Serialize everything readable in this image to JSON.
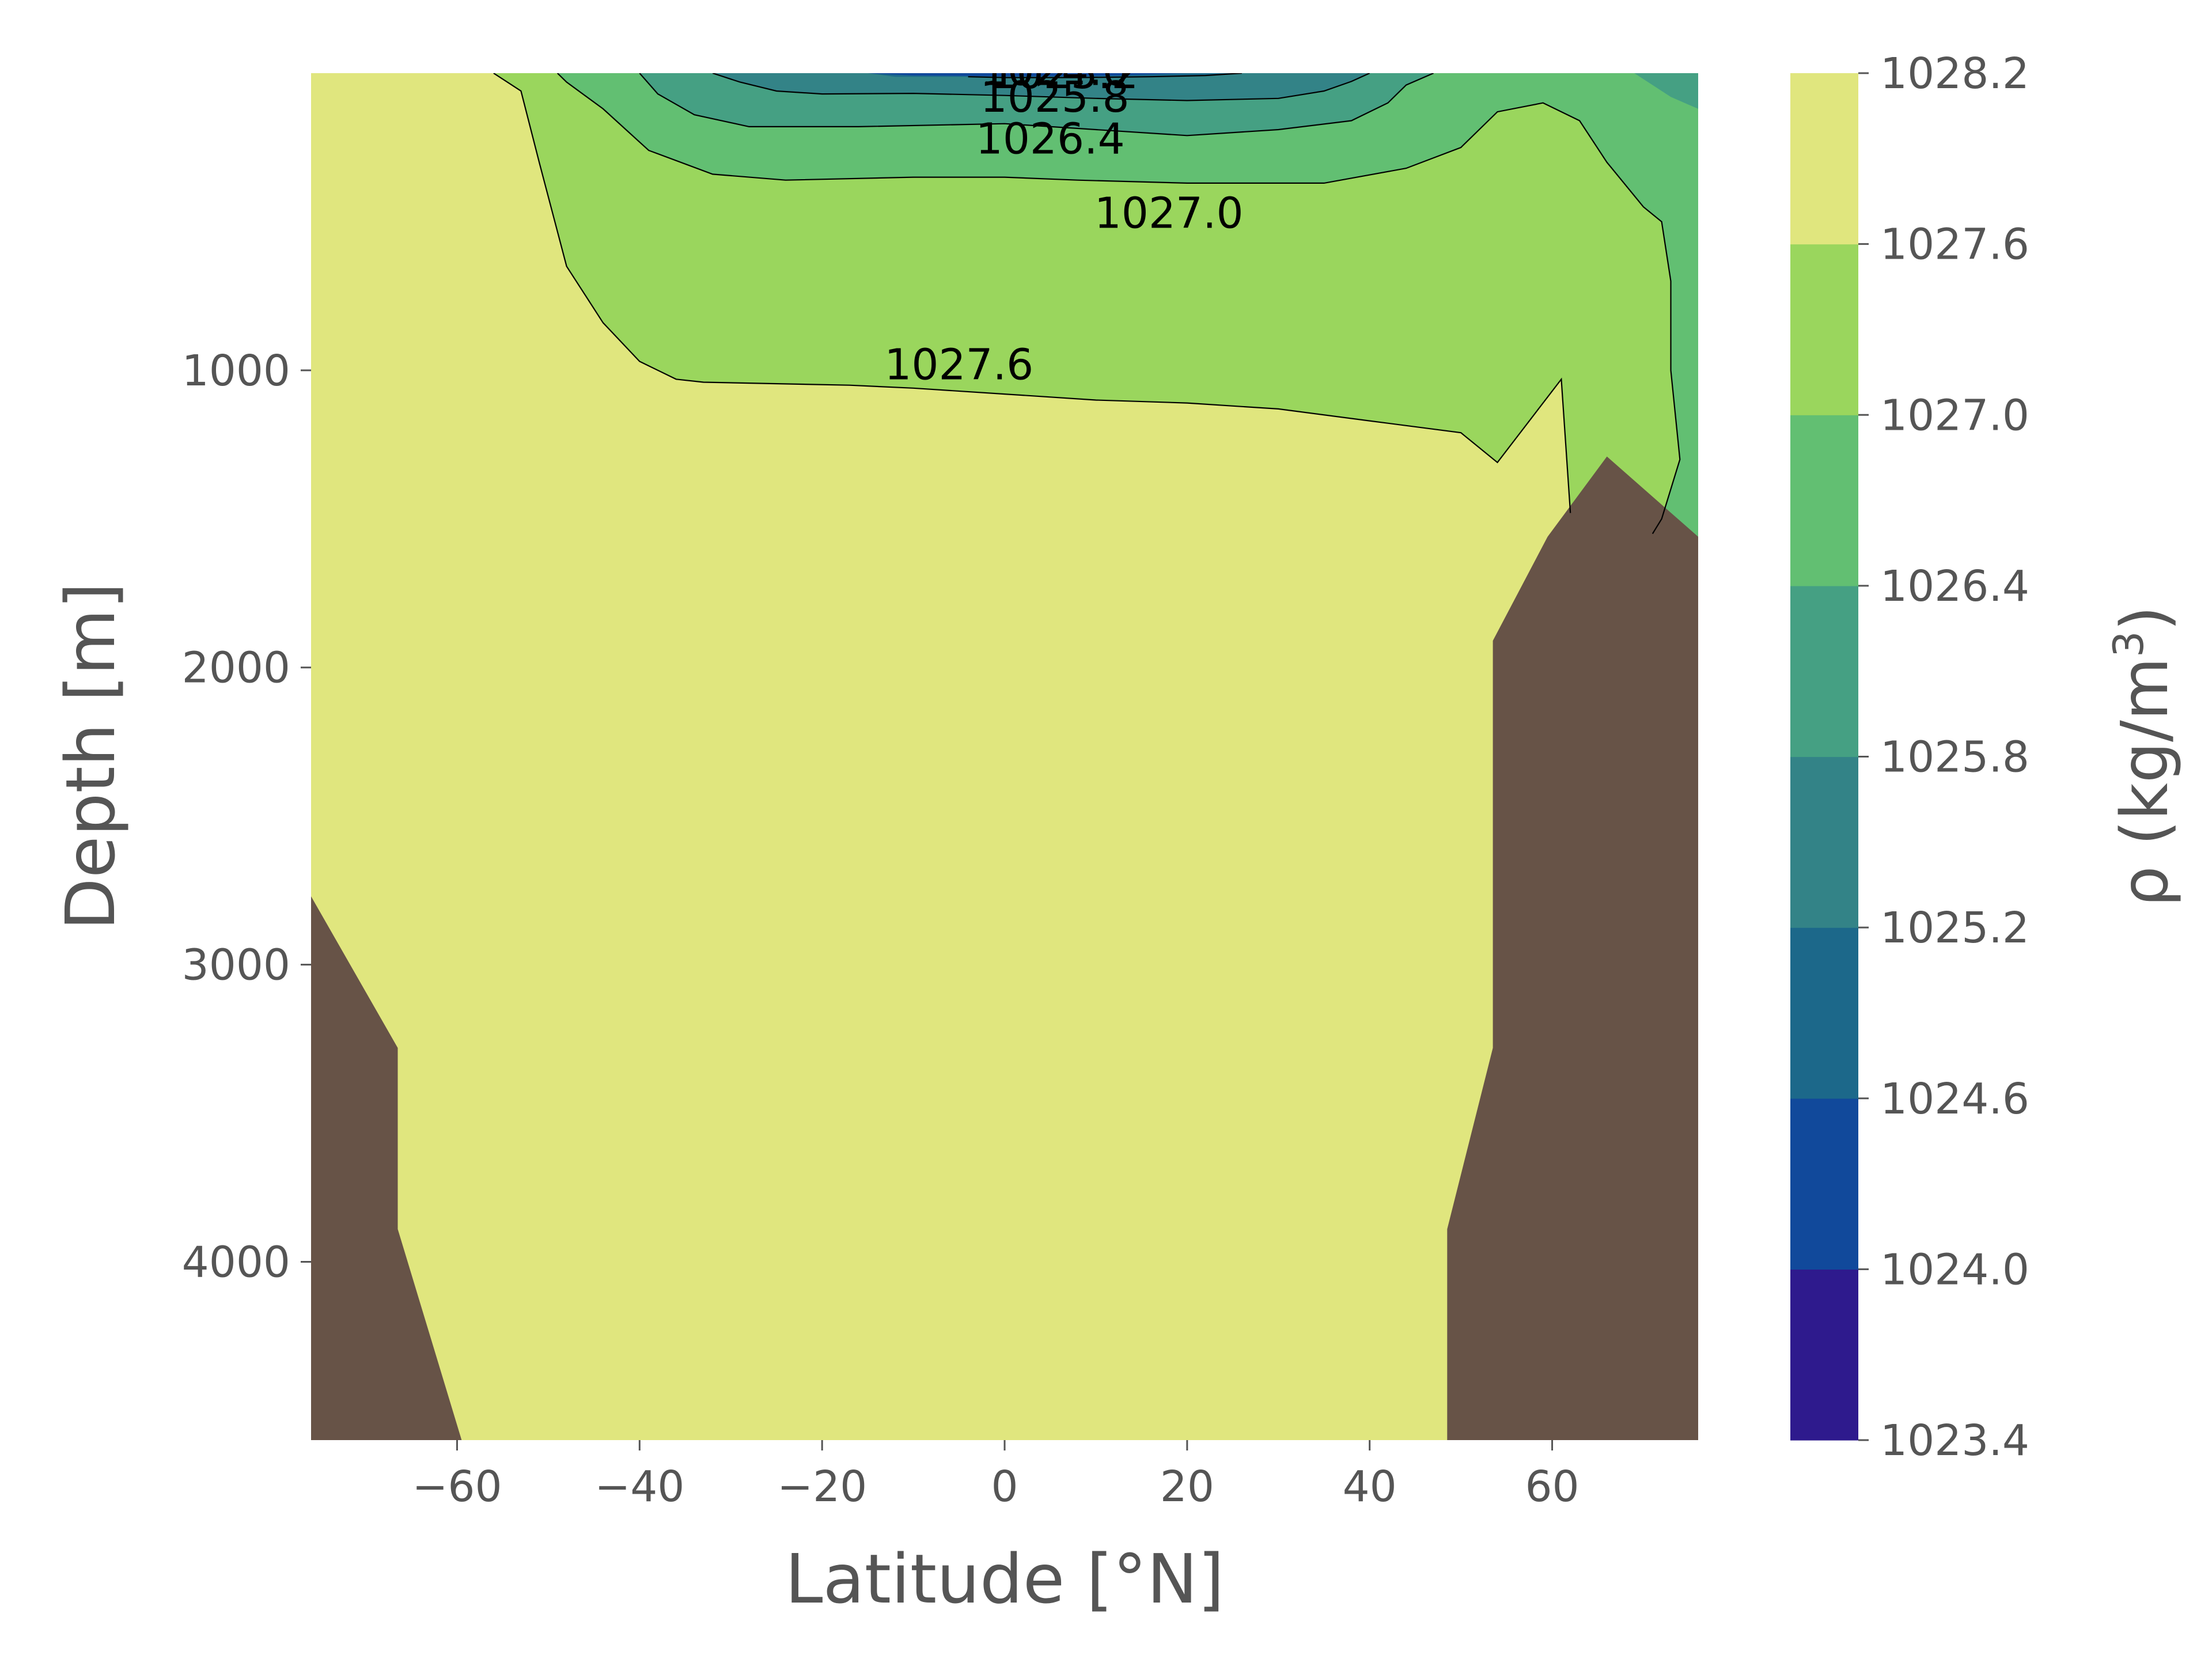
{
  "chart_data": {
    "type": "contour",
    "xlabel": "Latitude [°N]",
    "ylabel": "Depth [m]",
    "xlim": [
      -76,
      76
    ],
    "ylim": [
      4600,
      0
    ],
    "x_ticks": [
      -60,
      -40,
      -20,
      0,
      20,
      40,
      60
    ],
    "x_tick_labels": [
      "−60",
      "−40",
      "−20",
      "0",
      "20",
      "40",
      "60"
    ],
    "y_ticks": [
      1000,
      2000,
      3000,
      4000
    ],
    "y_tick_labels": [
      "1000",
      "2000",
      "3000",
      "4000"
    ],
    "grid": false,
    "colorbar": {
      "label_main": "ρ (kg/m",
      "label_sup": "3",
      "label_close": ")",
      "levels": [
        1023.4,
        1024.0,
        1024.6,
        1025.2,
        1025.8,
        1026.4,
        1027.0,
        1027.6,
        1028.2
      ],
      "level_labels": [
        "1023.4",
        "1024.0",
        "1024.6",
        "1025.2",
        "1025.8",
        "1026.4",
        "1027.0",
        "1027.6",
        "1028.2"
      ],
      "colors": [
        "#2e1a8d",
        "#11499b",
        "#1c688a",
        "#338387",
        "#45a083",
        "#62bf72",
        "#9ad65d",
        "#e0e67e"
      ]
    },
    "land_color": "#675347",
    "contour_lines": [
      {
        "level": "1025.2",
        "points": [
          [
            -4,
            12
          ],
          [
            0,
            15
          ],
          [
            8,
            15
          ],
          [
            16,
            12
          ],
          [
            22,
            8
          ],
          [
            26,
            0
          ]
        ]
      },
      {
        "level": "1025.8",
        "points": [
          [
            -32,
            0
          ],
          [
            -29,
            30
          ],
          [
            -25,
            60
          ],
          [
            -20,
            70
          ],
          [
            -10,
            68
          ],
          [
            0,
            75
          ],
          [
            10,
            85
          ],
          [
            20,
            92
          ],
          [
            30,
            85
          ],
          [
            35,
            60
          ],
          [
            38,
            28
          ],
          [
            40,
            0
          ]
        ]
      },
      {
        "level": "1026.4",
        "points": [
          [
            -40,
            0
          ],
          [
            -38,
            70
          ],
          [
            -34,
            140
          ],
          [
            -28,
            180
          ],
          [
            -16,
            180
          ],
          [
            0,
            170
          ],
          [
            10,
            190
          ],
          [
            20,
            210
          ],
          [
            30,
            190
          ],
          [
            38,
            160
          ],
          [
            42,
            100
          ],
          [
            44,
            40
          ],
          [
            47,
            0
          ]
        ]
      },
      {
        "level": "1027.0",
        "points": [
          [
            -49,
            0
          ],
          [
            -48,
            30
          ],
          [
            -44,
            120
          ],
          [
            -39,
            260
          ],
          [
            -32,
            340
          ],
          [
            -24,
            360
          ],
          [
            -10,
            350
          ],
          [
            0,
            350
          ],
          [
            8,
            360
          ],
          [
            20,
            370
          ],
          [
            35,
            370
          ],
          [
            44,
            320
          ],
          [
            50,
            250
          ],
          [
            54,
            130
          ],
          [
            59,
            100
          ],
          [
            63,
            160
          ],
          [
            66,
            300
          ],
          [
            70,
            450
          ],
          [
            72,
            500
          ],
          [
            73,
            700
          ],
          [
            73,
            1000
          ],
          [
            74,
            1300
          ],
          [
            72,
            1500
          ],
          [
            71,
            1550
          ]
        ]
      },
      {
        "level": "1027.6",
        "points": [
          [
            -56,
            0
          ],
          [
            -53,
            60
          ],
          [
            -51,
            300
          ],
          [
            -48,
            650
          ],
          [
            -44,
            840
          ],
          [
            -40,
            970
          ],
          [
            -36,
            1030
          ],
          [
            -33,
            1040
          ],
          [
            -17,
            1050
          ],
          [
            -10,
            1060
          ],
          [
            0,
            1080
          ],
          [
            10,
            1100
          ],
          [
            20,
            1110
          ],
          [
            30,
            1130
          ],
          [
            40,
            1170
          ],
          [
            50,
            1210
          ],
          [
            54,
            1310
          ],
          [
            61,
            1030
          ],
          [
            62,
            1480
          ]
        ]
      }
    ],
    "contour_labels": [
      {
        "text": "1024.0",
        "x": 5.5,
        "y": 40
      },
      {
        "text": "1025.2",
        "x": 6.5,
        "y": 50
      },
      {
        "text": "1025.8",
        "x": 5.5,
        "y": 130
      },
      {
        "text": "1026.4",
        "x": 5,
        "y": 270
      },
      {
        "text": "1027.0",
        "x": 18,
        "y": 520
      },
      {
        "text": "1027.6",
        "x": -5,
        "y": 1030
      }
    ],
    "regions": [
      {
        "color": "#e0e67e",
        "points": [
          [
            -76,
            0
          ],
          [
            -76,
            4600
          ],
          [
            76,
            4600
          ],
          [
            76,
            0
          ]
        ]
      },
      {
        "color": "#9ad65d",
        "points": [
          [
            -56,
            0
          ],
          [
            -53,
            60
          ],
          [
            -51,
            300
          ],
          [
            -48,
            650
          ],
          [
            -44,
            840
          ],
          [
            -40,
            970
          ],
          [
            -36,
            1030
          ],
          [
            -33,
            1040
          ],
          [
            -17,
            1050
          ],
          [
            -10,
            1060
          ],
          [
            0,
            1080
          ],
          [
            10,
            1100
          ],
          [
            20,
            1110
          ],
          [
            30,
            1130
          ],
          [
            40,
            1170
          ],
          [
            50,
            1210
          ],
          [
            54,
            1310
          ],
          [
            61,
            1030
          ],
          [
            62,
            1480
          ],
          [
            76,
            1480
          ],
          [
            76,
            0
          ]
        ]
      },
      {
        "color": "#62bf72",
        "points": [
          [
            -49,
            0
          ],
          [
            -48,
            30
          ],
          [
            -44,
            120
          ],
          [
            -39,
            260
          ],
          [
            -32,
            340
          ],
          [
            -24,
            360
          ],
          [
            -10,
            350
          ],
          [
            0,
            350
          ],
          [
            8,
            360
          ],
          [
            20,
            370
          ],
          [
            35,
            370
          ],
          [
            44,
            320
          ],
          [
            50,
            250
          ],
          [
            54,
            130
          ],
          [
            59,
            100
          ],
          [
            63,
            160
          ],
          [
            66,
            300
          ],
          [
            70,
            450
          ],
          [
            72,
            500
          ],
          [
            73,
            700
          ],
          [
            73,
            1000
          ],
          [
            74,
            1300
          ],
          [
            72,
            1500
          ],
          [
            71,
            1550
          ],
          [
            76,
            1560
          ],
          [
            76,
            0
          ]
        ]
      },
      {
        "color": "#45a083",
        "points": [
          [
            -40,
            0
          ],
          [
            -38,
            70
          ],
          [
            -34,
            140
          ],
          [
            -28,
            180
          ],
          [
            -16,
            180
          ],
          [
            0,
            170
          ],
          [
            10,
            190
          ],
          [
            20,
            210
          ],
          [
            30,
            190
          ],
          [
            38,
            160
          ],
          [
            42,
            100
          ],
          [
            44,
            40
          ],
          [
            47,
            0
          ]
        ]
      },
      {
        "color": "#45a083",
        "points": [
          [
            69,
            0
          ],
          [
            73,
            80
          ],
          [
            76,
            120
          ],
          [
            76,
            0
          ]
        ]
      },
      {
        "color": "#338387",
        "points": [
          [
            -32,
            0
          ],
          [
            -29,
            30
          ],
          [
            -25,
            60
          ],
          [
            -20,
            70
          ],
          [
            -10,
            68
          ],
          [
            0,
            75
          ],
          [
            10,
            85
          ],
          [
            20,
            92
          ],
          [
            30,
            85
          ],
          [
            35,
            60
          ],
          [
            38,
            28
          ],
          [
            40,
            0
          ]
        ]
      },
      {
        "color": "#1c688a",
        "points": [
          [
            -15,
            0
          ],
          [
            -12,
            12
          ],
          [
            -4,
            12
          ],
          [
            0,
            15
          ],
          [
            8,
            15
          ],
          [
            16,
            12
          ],
          [
            22,
            8
          ],
          [
            26,
            0
          ]
        ]
      },
      {
        "color": "#11499b",
        "points": [
          [
            -15,
            0
          ],
          [
            -10,
            8
          ],
          [
            -2,
            10
          ],
          [
            4,
            10
          ],
          [
            12,
            8
          ],
          [
            20,
            0
          ]
        ]
      }
    ],
    "land": [
      {
        "points": [
          [
            -76,
            2770
          ],
          [
            -66.5,
            3280
          ],
          [
            -66.5,
            3890
          ],
          [
            -59.5,
            4600
          ],
          [
            -76,
            4600
          ]
        ]
      },
      {
        "points": [
          [
            48.5,
            4600
          ],
          [
            48.5,
            3890
          ],
          [
            53.5,
            3280
          ],
          [
            53.5,
            1910
          ],
          [
            59.5,
            1560
          ],
          [
            66,
            1290
          ],
          [
            76,
            1560
          ],
          [
            76,
            4600
          ]
        ]
      }
    ]
  }
}
